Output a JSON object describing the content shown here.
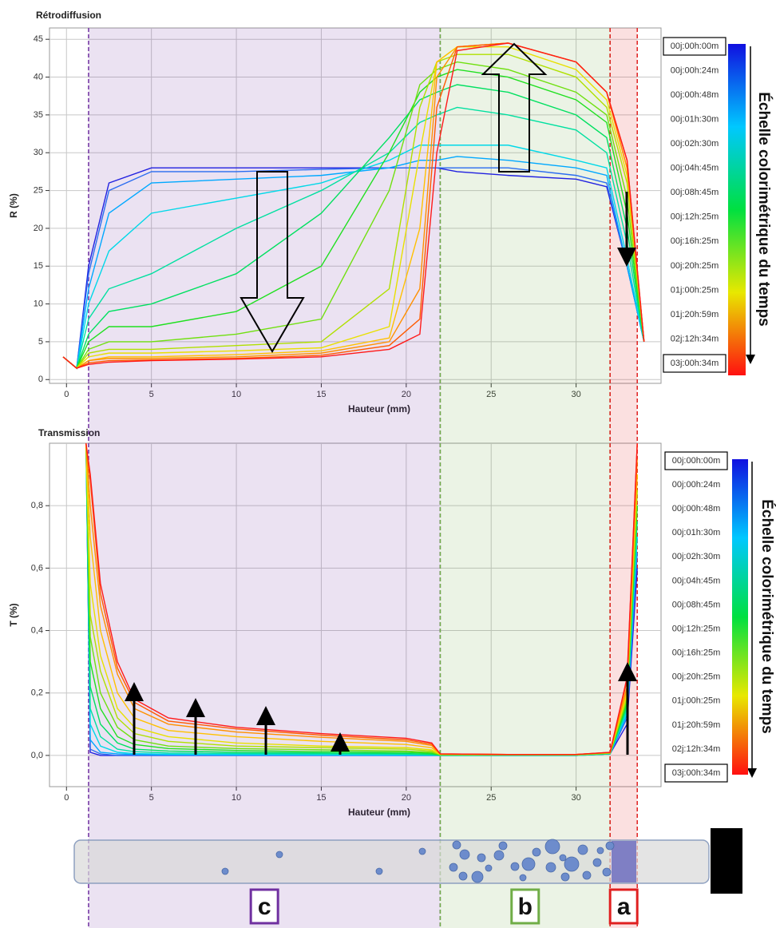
{
  "chart_data": [
    {
      "type": "line",
      "title": "Rétrodiffusion",
      "xlabel": "Hauteur (mm)",
      "ylabel": "R (%)",
      "colorbar_label": "Échelle colorimétrique du temps",
      "xlim": [
        -1,
        35
      ],
      "ylim": [
        -0.5,
        46.5
      ],
      "xticks": [
        0,
        5,
        10,
        15,
        20,
        25,
        30
      ],
      "yticks": [
        0,
        5,
        10,
        15,
        20,
        25,
        30,
        35,
        40,
        45
      ],
      "grid": true,
      "x": [
        -0.2,
        0.6,
        1.3,
        2.5,
        5,
        10,
        15,
        19,
        20.8,
        21.8,
        23,
        26,
        30,
        31.8,
        33,
        34
      ],
      "series": [
        {
          "name": "00j:00h:00m",
          "color": "#2020e0",
          "values": [
            3,
            1.5,
            15,
            26,
            28,
            28,
            28,
            28,
            28,
            28,
            27.5,
            27,
            26.5,
            25.5,
            15,
            5
          ]
        },
        {
          "name": "00j:00h:24m",
          "color": "#2a6cf0",
          "values": [
            3,
            1.5,
            14,
            25,
            27.5,
            27.5,
            27.8,
            28,
            28,
            28,
            28,
            28,
            27,
            26,
            15,
            5
          ]
        },
        {
          "name": "00j:00h:48m",
          "color": "#00a8ff",
          "values": [
            3,
            1.5,
            12,
            22,
            26,
            26.5,
            27,
            28,
            29,
            29,
            29.5,
            29,
            28,
            27,
            15,
            5
          ]
        },
        {
          "name": "00j:01h:30m",
          "color": "#00d8e8",
          "values": [
            3,
            1.5,
            10,
            17,
            22,
            24,
            26,
            29,
            31,
            31,
            31,
            31,
            29,
            28,
            16,
            5
          ]
        },
        {
          "name": "00j:02h:30m",
          "color": "#00e0a0",
          "values": [
            3,
            1.5,
            8,
            12,
            14,
            20,
            25,
            30,
            34,
            35,
            36,
            35,
            33,
            30,
            18,
            5
          ]
        },
        {
          "name": "00j:04h:45m",
          "color": "#00e060",
          "values": [
            3,
            1.5,
            6,
            9,
            10,
            14,
            22,
            32,
            37,
            38,
            39,
            38,
            35,
            32,
            20,
            5
          ]
        },
        {
          "name": "00j:08h:45m",
          "color": "#20e020",
          "values": [
            3,
            1.5,
            5,
            7,
            7,
            9,
            15,
            30,
            38,
            40,
            41,
            40,
            37,
            34,
            22,
            5
          ]
        },
        {
          "name": "00j:12h:25m",
          "color": "#70e010",
          "values": [
            3,
            1.5,
            4,
            5,
            5,
            6,
            8,
            25,
            39,
            41,
            42,
            41,
            38,
            35,
            24,
            5
          ]
        },
        {
          "name": "00j:16h:25m",
          "color": "#b0e000",
          "values": [
            3,
            1.5,
            3.5,
            4,
            4,
            4.5,
            5,
            12,
            36,
            42,
            43,
            43,
            40,
            36,
            26,
            5
          ]
        },
        {
          "name": "00j:20h:25m",
          "color": "#e8e000",
          "values": [
            3,
            1.5,
            3,
            3.5,
            3.5,
            3.8,
            4.2,
            7,
            30,
            42,
            44,
            44,
            41,
            37,
            27,
            5
          ]
        },
        {
          "name": "01j:00h:25m",
          "color": "#ffc000",
          "values": [
            3,
            1.5,
            2.5,
            3,
            3,
            3.3,
            3.8,
            5.5,
            20,
            42,
            44,
            44.5,
            42,
            38,
            28,
            5
          ]
        },
        {
          "name": "01j:20h:59m",
          "color": "#ff9000",
          "values": [
            3,
            1.5,
            2.5,
            2.8,
            2.8,
            3,
            3.5,
            5,
            12,
            40,
            44,
            44.5,
            42,
            38,
            28,
            5
          ]
        },
        {
          "name": "02j:12h:34m",
          "color": "#ff5a00",
          "values": [
            3,
            1.5,
            2.2,
            2.5,
            2.6,
            2.8,
            3.2,
            4.5,
            8,
            36,
            44,
            44.5,
            42,
            38,
            29,
            5
          ]
        },
        {
          "name": "03j:00h:34m",
          "color": "#ff1a1a",
          "values": [
            3,
            1.5,
            2,
            2.3,
            2.5,
            2.7,
            3,
            4,
            6,
            30,
            43.5,
            44.5,
            42,
            38,
            29,
            5
          ]
        }
      ]
    },
    {
      "type": "line",
      "title": "Transmission",
      "xlabel": "Hauteur (mm)",
      "ylabel": "T (%)",
      "colorbar_label": "Échelle colorimétrique du temps",
      "xlim": [
        -1,
        35
      ],
      "ylim": [
        -0.1,
        1.0
      ],
      "xticks": [
        0,
        5,
        10,
        15,
        20,
        25,
        30
      ],
      "yticks": [
        {
          "value": 0,
          "label": "0,0"
        },
        {
          "value": 0.2,
          "label": "0,2"
        },
        {
          "value": 0.4,
          "label": "0,4"
        },
        {
          "value": 0.6,
          "label": "0,6"
        },
        {
          "value": 0.8,
          "label": "0,8"
        }
      ],
      "grid": true,
      "x": [
        1.15,
        1.4,
        2,
        3,
        4,
        6,
        10,
        15,
        20,
        21.5,
        22,
        26,
        30,
        32,
        33,
        33.6
      ],
      "series": [
        {
          "name": "00j:00h:00m",
          "color": "#2020e0",
          "values": [
            1.0,
            0.01,
            0,
            0,
            0,
            0,
            0,
            0,
            0,
            0,
            0,
            0,
            0,
            0.005,
            0.1,
            0.6
          ]
        },
        {
          "name": "00j:00h:24m",
          "color": "#2a6cf0",
          "values": [
            1.0,
            0.02,
            0.005,
            0,
            0,
            0,
            0,
            0,
            0,
            0,
            0,
            0,
            0,
            0.005,
            0.12,
            0.65
          ]
        },
        {
          "name": "00j:00h:48m",
          "color": "#00a8ff",
          "values": [
            1.0,
            0.05,
            0.01,
            0.005,
            0.003,
            0.002,
            0.001,
            0.001,
            0,
            0,
            0,
            0,
            0,
            0.005,
            0.13,
            0.7
          ]
        },
        {
          "name": "00j:01h:30m",
          "color": "#00d8e8",
          "values": [
            1.0,
            0.1,
            0.03,
            0.01,
            0.006,
            0.004,
            0.003,
            0.002,
            0.002,
            0.001,
            0,
            0,
            0,
            0.005,
            0.14,
            0.7
          ]
        },
        {
          "name": "00j:02h:30m",
          "color": "#00e0a0",
          "values": [
            1.0,
            0.15,
            0.06,
            0.02,
            0.012,
            0.008,
            0.006,
            0.005,
            0.004,
            0.002,
            0.001,
            0.001,
            0.001,
            0.006,
            0.15,
            0.75
          ]
        },
        {
          "name": "00j:04h:45m",
          "color": "#00e060",
          "values": [
            1.0,
            0.22,
            0.1,
            0.04,
            0.02,
            0.014,
            0.01,
            0.008,
            0.006,
            0.004,
            0.001,
            0.001,
            0.001,
            0.006,
            0.16,
            0.8
          ]
        },
        {
          "name": "00j:08h:45m",
          "color": "#20e020",
          "values": [
            1.0,
            0.3,
            0.15,
            0.06,
            0.035,
            0.022,
            0.016,
            0.012,
            0.01,
            0.007,
            0.002,
            0.002,
            0.002,
            0.007,
            0.17,
            0.8
          ]
        },
        {
          "name": "00j:12h:25m",
          "color": "#70e010",
          "values": [
            1.0,
            0.38,
            0.2,
            0.09,
            0.05,
            0.03,
            0.022,
            0.018,
            0.014,
            0.01,
            0.002,
            0.002,
            0.002,
            0.007,
            0.18,
            0.85
          ]
        },
        {
          "name": "00j:16h:25m",
          "color": "#b0e000",
          "values": [
            1.0,
            0.45,
            0.27,
            0.12,
            0.07,
            0.045,
            0.03,
            0.025,
            0.02,
            0.014,
            0.003,
            0.002,
            0.002,
            0.008,
            0.19,
            0.85
          ]
        },
        {
          "name": "00j:20h:25m",
          "color": "#e8e000",
          "values": [
            1.0,
            0.55,
            0.32,
            0.15,
            0.09,
            0.06,
            0.04,
            0.03,
            0.025,
            0.018,
            0.003,
            0.002,
            0.002,
            0.008,
            0.2,
            0.9
          ]
        },
        {
          "name": "01j:00h:25m",
          "color": "#ffc000",
          "values": [
            1.0,
            0.7,
            0.4,
            0.2,
            0.12,
            0.08,
            0.06,
            0.045,
            0.035,
            0.025,
            0.004,
            0.003,
            0.003,
            0.009,
            0.21,
            0.9
          ]
        },
        {
          "name": "01j:20h:59m",
          "color": "#ff9000",
          "values": [
            1.0,
            0.8,
            0.48,
            0.26,
            0.15,
            0.1,
            0.075,
            0.058,
            0.045,
            0.032,
            0.004,
            0.003,
            0.003,
            0.009,
            0.22,
            0.95
          ]
        },
        {
          "name": "02j:12h:34m",
          "color": "#ff5a00",
          "values": [
            1.0,
            0.88,
            0.52,
            0.28,
            0.17,
            0.11,
            0.085,
            0.065,
            0.05,
            0.036,
            0.005,
            0.003,
            0.003,
            0.01,
            0.24,
            1.0
          ]
        },
        {
          "name": "03j:00h:34m",
          "color": "#ff1a1a",
          "values": [
            1.0,
            0.9,
            0.55,
            0.3,
            0.18,
            0.12,
            0.09,
            0.07,
            0.055,
            0.04,
            0.005,
            0.003,
            0.003,
            0.01,
            0.25,
            1.0
          ]
        }
      ]
    }
  ],
  "zones": [
    {
      "label": "c",
      "xlim": [
        1.3,
        22.0
      ],
      "color": "#7030a0"
    },
    {
      "label": "b",
      "xlim": [
        22.0,
        32.0
      ],
      "color": "#70ad47"
    },
    {
      "label": "a",
      "xlim": [
        32.0,
        33.6
      ],
      "color": "#e02020"
    }
  ]
}
